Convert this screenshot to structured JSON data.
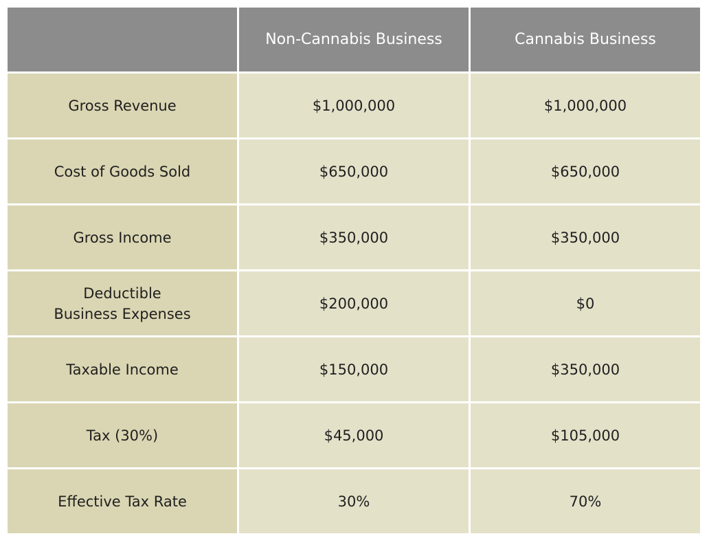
{
  "table": {
    "headers": [
      "",
      "Non-Cannabis Business",
      "Cannabis Business"
    ],
    "rows": [
      {
        "label": [
          "Gross Revenue"
        ],
        "non_cannabis": "$1,000,000",
        "cannabis": "$1,000,000"
      },
      {
        "label": [
          "Cost of Goods Sold"
        ],
        "non_cannabis": "$650,000",
        "cannabis": "$650,000"
      },
      {
        "label": [
          "Gross Income"
        ],
        "non_cannabis": "$350,000",
        "cannabis": "$350,000"
      },
      {
        "label": [
          "Deductible",
          "Business Expenses"
        ],
        "non_cannabis": "$200,000",
        "cannabis": "$0"
      },
      {
        "label": [
          "Taxable Income"
        ],
        "non_cannabis": "$150,000",
        "cannabis": "$350,000"
      },
      {
        "label": [
          "Tax (30%)"
        ],
        "non_cannabis": "$45,000",
        "cannabis": "$105,000"
      },
      {
        "label": [
          "Effective Tax Rate"
        ],
        "non_cannabis": "30%",
        "cannabis": "70%"
      }
    ]
  },
  "colors": {
    "header_bg": "#8c8c8c",
    "header_text": "#ffffff",
    "label_bg": "#dad6b3",
    "value_bg": "#e4e1c9",
    "text": "#1f1f1f"
  }
}
